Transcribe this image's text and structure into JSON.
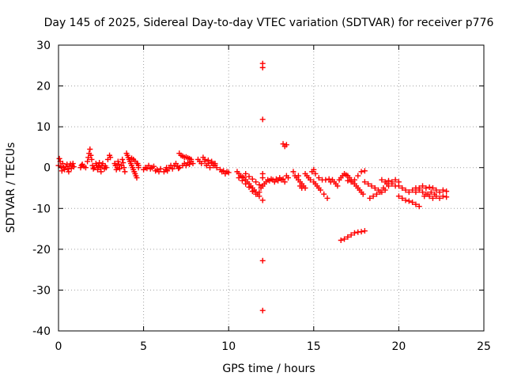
{
  "chart_data": {
    "type": "scatter",
    "title": "Day 145 of 2025, Sidereal Day-to-day VTEC variation (SDTVAR) for receiver p776",
    "xlabel": "GPS time / hours",
    "ylabel": "SDTVAR / TECUs",
    "xlim": [
      0,
      25
    ],
    "ylim": [
      -40,
      30
    ],
    "xticks": [
      0,
      5,
      10,
      15,
      20,
      25
    ],
    "yticks": [
      -40,
      -30,
      -20,
      -10,
      0,
      10,
      20,
      30
    ],
    "xtick_labels": [
      "0",
      "5",
      "10",
      "15",
      "20",
      "25"
    ],
    "ytick_labels": [
      "-40",
      "-30",
      "-20",
      "-10",
      "0",
      "10",
      "20",
      "30"
    ],
    "grid": true,
    "marker": "+",
    "color": "#ff0000",
    "series": [
      {
        "name": "SDTVAR",
        "points": [
          [
            0.0,
            0.5
          ],
          [
            0.05,
            2.2
          ],
          [
            0.1,
            1.5
          ],
          [
            0.15,
            0.2
          ],
          [
            0.2,
            -0.8
          ],
          [
            0.25,
            1.0
          ],
          [
            0.3,
            0.0
          ],
          [
            0.35,
            -0.5
          ],
          [
            0.45,
            0.3
          ],
          [
            0.5,
            0.8
          ],
          [
            0.55,
            -0.3
          ],
          [
            0.6,
            -1.0
          ],
          [
            0.65,
            0.4
          ],
          [
            0.7,
            0.9
          ],
          [
            0.75,
            -0.2
          ],
          [
            0.8,
            0.5
          ],
          [
            0.85,
            1.0
          ],
          [
            0.9,
            0.2
          ],
          [
            1.3,
            0.0
          ],
          [
            1.35,
            0.5
          ],
          [
            1.4,
            0.8
          ],
          [
            1.5,
            0.3
          ],
          [
            1.6,
            0.0
          ],
          [
            1.7,
            1.5
          ],
          [
            1.75,
            2.5
          ],
          [
            1.8,
            3.5
          ],
          [
            1.85,
            4.5
          ],
          [
            1.9,
            3.0
          ],
          [
            1.95,
            2.0
          ],
          [
            2.0,
            0.5
          ],
          [
            2.05,
            -0.3
          ],
          [
            2.1,
            0.0
          ],
          [
            2.2,
            1.0
          ],
          [
            2.25,
            0.5
          ],
          [
            2.3,
            -0.5
          ],
          [
            2.35,
            0.3
          ],
          [
            2.4,
            1.2
          ],
          [
            2.45,
            0.0
          ],
          [
            2.5,
            -1.0
          ],
          [
            2.55,
            0.5
          ],
          [
            2.6,
            1.0
          ],
          [
            2.7,
            -0.3
          ],
          [
            2.75,
            0.4
          ],
          [
            2.8,
            0.0
          ],
          [
            2.9,
            2.0
          ],
          [
            3.0,
            3.0
          ],
          [
            3.05,
            2.5
          ],
          [
            3.3,
            1.0
          ],
          [
            3.35,
            0.5
          ],
          [
            3.4,
            -0.5
          ],
          [
            3.45,
            0.0
          ],
          [
            3.5,
            1.5
          ],
          [
            3.55,
            0.8
          ],
          [
            3.6,
            -0.3
          ],
          [
            3.7,
            0.5
          ],
          [
            3.75,
            2.0
          ],
          [
            3.8,
            1.2
          ],
          [
            3.85,
            0.0
          ],
          [
            3.9,
            -1.0
          ],
          [
            4.0,
            3.5
          ],
          [
            4.05,
            3.0
          ],
          [
            4.1,
            2.5
          ],
          [
            4.15,
            2.0
          ],
          [
            4.2,
            1.5
          ],
          [
            4.25,
            1.0
          ],
          [
            4.3,
            0.5
          ],
          [
            4.35,
            0.0
          ],
          [
            4.4,
            -0.5
          ],
          [
            4.45,
            -1.0
          ],
          [
            4.5,
            -1.5
          ],
          [
            4.55,
            -2.0
          ],
          [
            4.6,
            -2.5
          ],
          [
            4.65,
            1.0
          ],
          [
            4.7,
            0.0
          ],
          [
            4.3,
            2.3
          ],
          [
            4.4,
            2.0
          ],
          [
            4.5,
            1.6
          ],
          [
            4.6,
            1.0
          ],
          [
            4.7,
            0.5
          ],
          [
            5.0,
            -0.5
          ],
          [
            5.1,
            0.0
          ],
          [
            5.2,
            -0.2
          ],
          [
            5.3,
            0.5
          ],
          [
            5.4,
            -0.3
          ],
          [
            5.5,
            0.0
          ],
          [
            5.6,
            0.3
          ],
          [
            5.7,
            -0.8
          ],
          [
            5.8,
            -0.5
          ],
          [
            5.9,
            -1.0
          ],
          [
            6.0,
            -0.3
          ],
          [
            6.2,
            -1.0
          ],
          [
            6.3,
            -0.5
          ],
          [
            6.35,
            0.0
          ],
          [
            6.4,
            -0.8
          ],
          [
            6.5,
            0.0
          ],
          [
            6.6,
            0.5
          ],
          [
            6.7,
            -0.3
          ],
          [
            6.8,
            0.5
          ],
          [
            6.9,
            1.0
          ],
          [
            7.0,
            0.3
          ],
          [
            7.05,
            -0.2
          ],
          [
            7.1,
            0.0
          ],
          [
            7.1,
            3.5
          ],
          [
            7.2,
            3.0
          ],
          [
            7.3,
            2.8
          ],
          [
            7.4,
            2.5
          ],
          [
            7.5,
            2.6
          ],
          [
            7.6,
            2.4
          ],
          [
            7.7,
            2.2
          ],
          [
            7.8,
            2.0
          ],
          [
            7.3,
            0.5
          ],
          [
            7.4,
            1.0
          ],
          [
            7.5,
            0.5
          ],
          [
            7.6,
            1.2
          ],
          [
            7.7,
            0.8
          ],
          [
            7.8,
            1.5
          ],
          [
            7.9,
            1.0
          ],
          [
            8.2,
            2.0
          ],
          [
            8.3,
            1.5
          ],
          [
            8.4,
            1.0
          ],
          [
            8.5,
            2.5
          ],
          [
            8.6,
            1.5
          ],
          [
            8.7,
            0.5
          ],
          [
            8.8,
            1.0
          ],
          [
            8.9,
            0.0
          ],
          [
            9.0,
            1.5
          ],
          [
            9.1,
            0.5
          ],
          [
            9.2,
            1.0
          ],
          [
            9.3,
            0.0
          ],
          [
            8.6,
            2.0
          ],
          [
            8.8,
            1.8
          ],
          [
            9.0,
            1.2
          ],
          [
            9.2,
            0.6
          ],
          [
            9.5,
            -0.5
          ],
          [
            9.6,
            -1.0
          ],
          [
            9.7,
            -0.8
          ],
          [
            9.8,
            -1.5
          ],
          [
            9.9,
            -1.0
          ],
          [
            10.0,
            -1.2
          ],
          [
            10.5,
            -1.0
          ],
          [
            10.6,
            -1.5
          ],
          [
            10.7,
            -2.0
          ],
          [
            10.8,
            -2.3
          ],
          [
            10.9,
            -2.5
          ],
          [
            11.0,
            -3.0
          ],
          [
            11.1,
            -3.5
          ],
          [
            11.2,
            -4.0
          ],
          [
            11.3,
            -4.5
          ],
          [
            11.4,
            -5.0
          ],
          [
            11.5,
            -5.5
          ],
          [
            11.6,
            -6.0
          ],
          [
            11.7,
            -6.5
          ],
          [
            11.8,
            -6.0
          ],
          [
            11.9,
            -5.0
          ],
          [
            12.0,
            -4.5
          ],
          [
            12.1,
            -4.0
          ],
          [
            12.2,
            -3.5
          ],
          [
            12.3,
            -3.0
          ],
          [
            12.4,
            -3.2
          ],
          [
            12.5,
            -2.8
          ],
          [
            10.6,
            -2.5
          ],
          [
            10.8,
            -3.2
          ],
          [
            11.0,
            -4.0
          ],
          [
            11.2,
            -4.8
          ],
          [
            11.4,
            -5.8
          ],
          [
            11.6,
            -6.5
          ],
          [
            11.8,
            -7.0
          ],
          [
            11.0,
            -1.5
          ],
          [
            11.2,
            -2.2
          ],
          [
            11.4,
            -2.8
          ],
          [
            11.6,
            -3.5
          ],
          [
            11.8,
            -4.2
          ],
          [
            12.0,
            -2.5
          ],
          [
            12.0,
            -1.5
          ],
          [
            12.0,
            -8.0
          ],
          [
            12.0,
            24.5
          ],
          [
            12.0,
            25.5
          ],
          [
            12.0,
            11.8
          ],
          [
            12.0,
            -22.8
          ],
          [
            12.0,
            -35.0
          ],
          [
            12.6,
            -3.0
          ],
          [
            12.7,
            -3.5
          ],
          [
            12.8,
            -2.8
          ],
          [
            12.9,
            -3.2
          ],
          [
            13.0,
            -2.5
          ],
          [
            13.1,
            -3.0
          ],
          [
            13.2,
            -2.8
          ],
          [
            13.3,
            -3.5
          ],
          [
            13.4,
            -2.0
          ],
          [
            13.5,
            -2.5
          ],
          [
            13.2,
            5.8
          ],
          [
            13.3,
            5.2
          ],
          [
            13.4,
            5.6
          ],
          [
            13.8,
            -1.0
          ],
          [
            13.9,
            -2.0
          ],
          [
            14.0,
            -2.5
          ],
          [
            14.1,
            -3.0
          ],
          [
            14.2,
            -3.5
          ],
          [
            14.3,
            -4.0
          ],
          [
            14.4,
            -4.5
          ],
          [
            14.5,
            -5.0
          ],
          [
            14.1,
            -2.0
          ],
          [
            14.2,
            -4.5
          ],
          [
            14.3,
            -5.0
          ],
          [
            14.5,
            -1.5
          ],
          [
            14.6,
            -2.0
          ],
          [
            14.7,
            -2.5
          ],
          [
            14.8,
            -3.0
          ],
          [
            14.9,
            -1.0
          ],
          [
            15.0,
            -0.5
          ],
          [
            15.1,
            -1.5
          ],
          [
            15.0,
            -3.5
          ],
          [
            15.1,
            -4.0
          ],
          [
            15.2,
            -4.5
          ],
          [
            15.3,
            -5.0
          ],
          [
            15.4,
            -5.5
          ],
          [
            15.6,
            -6.5
          ],
          [
            15.8,
            -7.5
          ],
          [
            15.3,
            -2.5
          ],
          [
            15.5,
            -3.0
          ],
          [
            15.7,
            -3.0
          ],
          [
            15.9,
            -2.8
          ],
          [
            16.0,
            -3.5
          ],
          [
            16.1,
            -3.0
          ],
          [
            16.2,
            -3.5
          ],
          [
            16.3,
            -4.0
          ],
          [
            16.4,
            -4.5
          ],
          [
            16.5,
            -3.0
          ],
          [
            16.6,
            -2.5
          ],
          [
            16.7,
            -2.0
          ],
          [
            16.8,
            -1.5
          ],
          [
            16.9,
            -1.8
          ],
          [
            17.0,
            -2.0
          ],
          [
            17.1,
            -2.5
          ],
          [
            17.2,
            -3.0
          ],
          [
            17.3,
            -3.5
          ],
          [
            17.4,
            -4.0
          ],
          [
            17.5,
            -4.5
          ],
          [
            17.6,
            -5.0
          ],
          [
            17.7,
            -5.5
          ],
          [
            17.8,
            -6.0
          ],
          [
            17.9,
            -6.5
          ],
          [
            17.0,
            -3.2
          ],
          [
            17.2,
            -3.5
          ],
          [
            17.4,
            -3.0
          ],
          [
            17.6,
            -2.0
          ],
          [
            17.8,
            -1.0
          ],
          [
            18.0,
            -0.8
          ],
          [
            16.6,
            -17.8
          ],
          [
            16.8,
            -17.5
          ],
          [
            17.0,
            -17.0
          ],
          [
            17.2,
            -16.5
          ],
          [
            17.4,
            -16.0
          ],
          [
            17.6,
            -15.8
          ],
          [
            17.8,
            -15.7
          ],
          [
            18.0,
            -15.5
          ],
          [
            18.0,
            -3.5
          ],
          [
            18.2,
            -4.0
          ],
          [
            18.4,
            -4.5
          ],
          [
            18.6,
            -5.0
          ],
          [
            18.8,
            -5.5
          ],
          [
            19.0,
            -6.0
          ],
          [
            19.2,
            -5.5
          ],
          [
            19.4,
            -4.5
          ],
          [
            19.6,
            -3.5
          ],
          [
            19.8,
            -3.0
          ],
          [
            20.0,
            -3.5
          ],
          [
            18.3,
            -7.5
          ],
          [
            18.5,
            -7.0
          ],
          [
            18.7,
            -6.5
          ],
          [
            18.9,
            -6.0
          ],
          [
            19.1,
            -5.0
          ],
          [
            19.3,
            -4.0
          ],
          [
            19.0,
            -3.0
          ],
          [
            19.2,
            -3.5
          ],
          [
            19.4,
            -3.2
          ],
          [
            19.6,
            -4.0
          ],
          [
            19.8,
            -4.5
          ],
          [
            20.0,
            -4.5
          ],
          [
            20.2,
            -5.0
          ],
          [
            20.4,
            -5.5
          ],
          [
            20.6,
            -6.0
          ],
          [
            20.8,
            -5.5
          ],
          [
            21.0,
            -5.0
          ],
          [
            21.2,
            -5.5
          ],
          [
            21.4,
            -6.0
          ],
          [
            21.6,
            -6.5
          ],
          [
            21.8,
            -7.0
          ],
          [
            22.0,
            -7.5
          ],
          [
            22.2,
            -7.0
          ],
          [
            22.4,
            -7.5
          ],
          [
            22.6,
            -7.0
          ],
          [
            22.8,
            -7.2
          ],
          [
            20.0,
            -7.0
          ],
          [
            20.2,
            -7.5
          ],
          [
            20.4,
            -8.0
          ],
          [
            20.6,
            -8.2
          ],
          [
            20.8,
            -8.5
          ],
          [
            21.0,
            -9.0
          ],
          [
            21.2,
            -9.5
          ],
          [
            21.0,
            -6.0
          ],
          [
            21.2,
            -5.0
          ],
          [
            21.4,
            -4.5
          ],
          [
            21.6,
            -5.0
          ],
          [
            21.8,
            -4.8
          ],
          [
            22.0,
            -5.0
          ],
          [
            22.2,
            -5.5
          ],
          [
            22.4,
            -6.0
          ],
          [
            22.6,
            -5.5
          ],
          [
            22.8,
            -5.8
          ],
          [
            21.5,
            -7.0
          ],
          [
            21.7,
            -6.5
          ],
          [
            21.9,
            -6.0
          ],
          [
            22.1,
            -6.5
          ]
        ]
      }
    ]
  }
}
